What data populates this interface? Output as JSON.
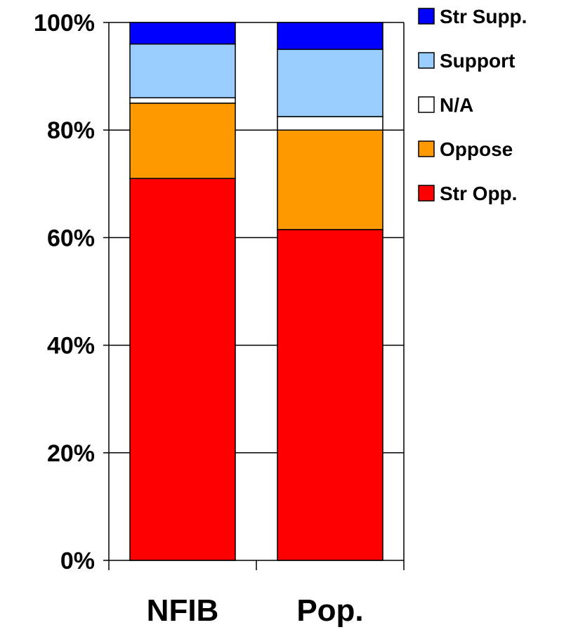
{
  "chart_data": {
    "type": "bar",
    "stacked": true,
    "title": "",
    "xlabel": "",
    "ylabel": "",
    "ylim": [
      0,
      100
    ],
    "grid": true,
    "legend_position": "right",
    "categories": [
      "NFIB",
      "Pop."
    ],
    "y_ticks": [
      "0%",
      "20%",
      "40%",
      "60%",
      "80%",
      "100%"
    ],
    "series": [
      {
        "name": "Str Opp.",
        "color": "#ff0000",
        "values": [
          71,
          61.5
        ]
      },
      {
        "name": "Oppose",
        "color": "#ff9900",
        "values": [
          14,
          18.5
        ]
      },
      {
        "name": "N/A",
        "color": "#ffffff",
        "values": [
          1,
          2.5
        ]
      },
      {
        "name": "Support",
        "color": "#99ccff",
        "values": [
          10,
          12.5
        ]
      },
      {
        "name": "Str Supp.",
        "color": "#0000ff",
        "values": [
          4,
          5
        ]
      }
    ],
    "legend_order": [
      "Str Supp.",
      "Support",
      "N/A",
      "Oppose",
      "Str Opp."
    ]
  }
}
